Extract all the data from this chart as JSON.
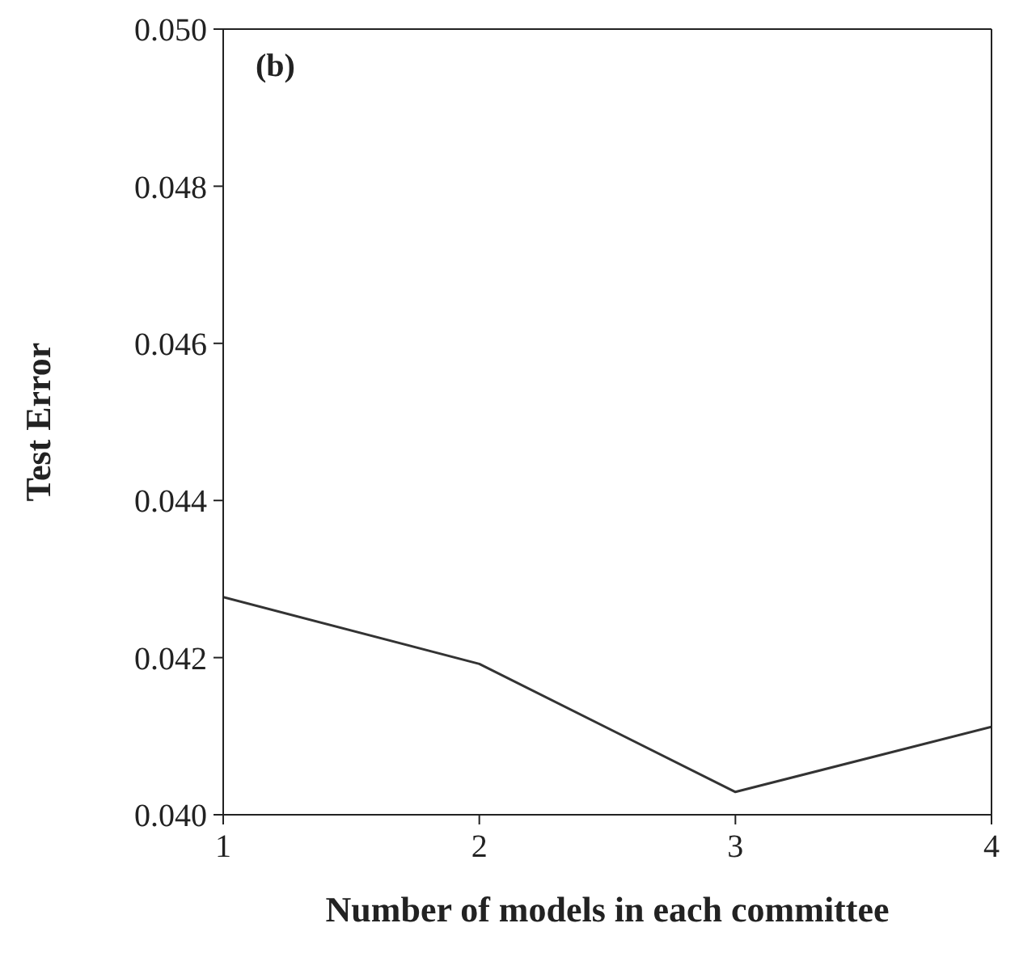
{
  "chart_data": {
    "type": "line",
    "xlabel": "Number of models in each committee",
    "ylabel": "Test Error",
    "annotations": [
      "(b)"
    ],
    "x": [
      1,
      2,
      3,
      4
    ],
    "series": [
      {
        "color": "#333333",
        "values": [
          0.04277,
          0.04192,
          0.04029,
          0.04112
        ]
      }
    ],
    "xlim": [
      1,
      4
    ],
    "xticks": [
      1,
      2,
      3,
      4
    ],
    "ylim": [
      0.04,
      0.05
    ],
    "yticks": [
      {
        "value": 0.04,
        "label": "0.040"
      },
      {
        "value": 0.042,
        "label": "0.042"
      },
      {
        "value": 0.044,
        "label": "0.044"
      },
      {
        "value": 0.046,
        "label": "0.046"
      },
      {
        "value": 0.048,
        "label": "0.048"
      },
      {
        "value": 0.05,
        "label": "0.050"
      }
    ],
    "grid": false,
    "legend": false,
    "marker": "none",
    "line_style": "solid"
  }
}
